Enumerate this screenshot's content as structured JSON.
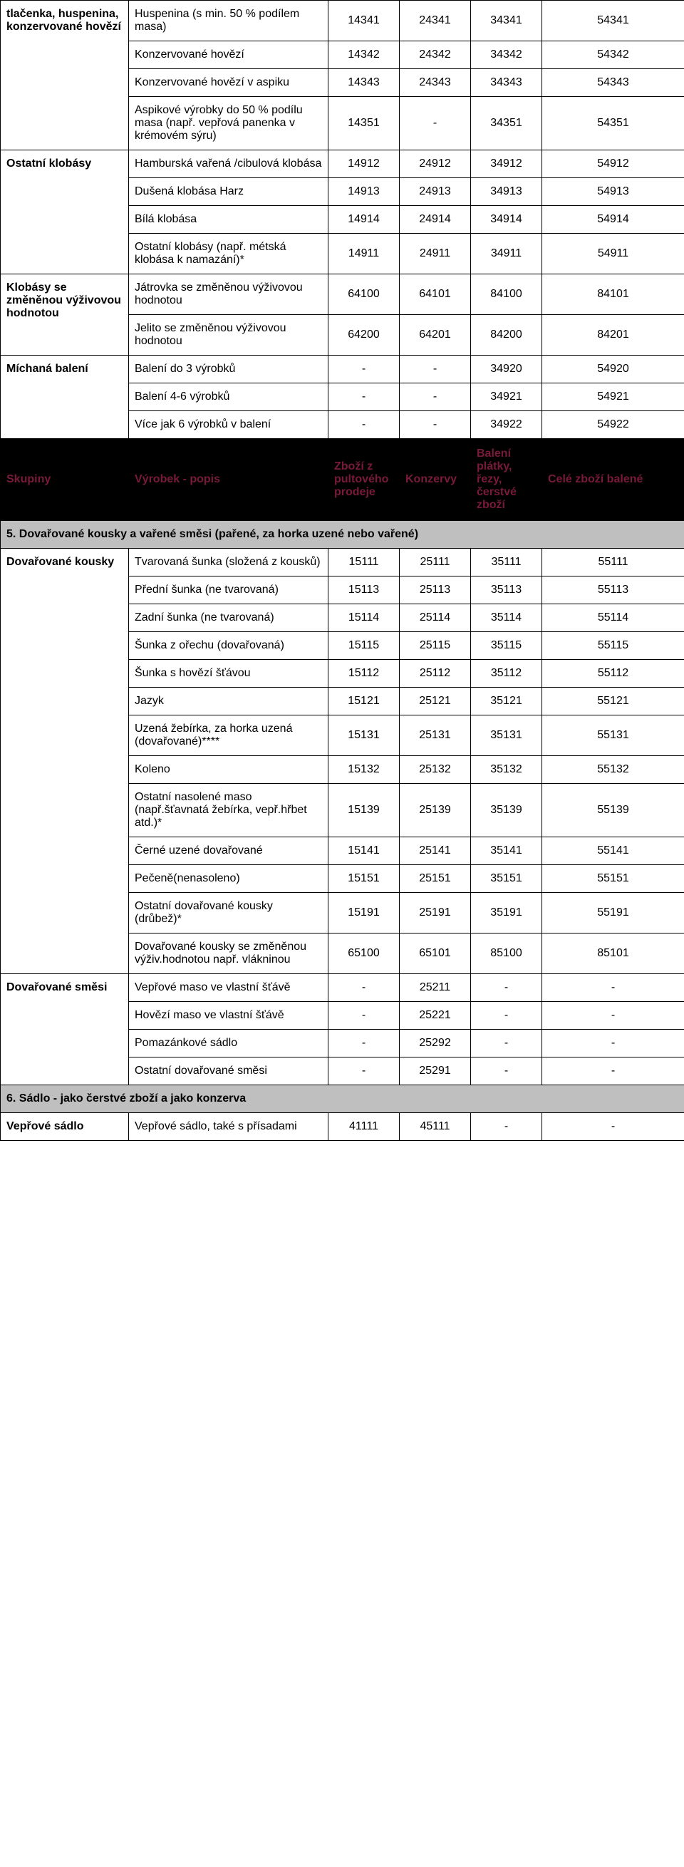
{
  "groups": [
    {
      "category": "tlačenka, huspenina, konzervované hovězí",
      "rows": [
        {
          "desc": "Huspenina (s min. 50 % podílem masa)",
          "c": [
            "14341",
            "24341",
            "34341",
            "54341"
          ]
        },
        {
          "desc": "Konzervované hovězí",
          "c": [
            "14342",
            "24342",
            "34342",
            "54342"
          ]
        },
        {
          "desc": "Konzervované hovězí v aspiku",
          "c": [
            "14343",
            "24343",
            "34343",
            "54343"
          ]
        },
        {
          "desc": "Aspikové výrobky do 50 % podílu masa (např. vepřová panenka v krémovém sýru)",
          "c": [
            "14351",
            "-",
            "34351",
            "54351"
          ]
        }
      ]
    },
    {
      "category": "Ostatní klobásy",
      "rows": [
        {
          "desc": "Hamburská vařená /cibulová klobása",
          "c": [
            "14912",
            "24912",
            "34912",
            "54912"
          ]
        },
        {
          "desc": "Dušená klobása Harz",
          "c": [
            "14913",
            "24913",
            "34913",
            "54913"
          ]
        },
        {
          "desc": "Bílá klobása",
          "c": [
            "14914",
            "24914",
            "34914",
            "54914"
          ]
        },
        {
          "desc": "Ostatní klobásy (např. métská klobása k namazání)*",
          "c": [
            "14911",
            "24911",
            "34911",
            "54911"
          ]
        }
      ]
    },
    {
      "category": "Klobásy se změněnou výživovou hodnotou",
      "rows": [
        {
          "desc": "Játrovka se změněnou výživovou hodnotou",
          "c": [
            "64100",
            "64101",
            "84100",
            "84101"
          ]
        },
        {
          "desc": "Jelito se změněnou výživovou hodnotou",
          "c": [
            "64200",
            "64201",
            "84200",
            "84201"
          ]
        }
      ]
    },
    {
      "category": "Míchaná balení",
      "rows": [
        {
          "desc": "Balení do 3 výrobků",
          "c": [
            "-",
            "-",
            "34920",
            "54920"
          ]
        },
        {
          "desc": "Balení 4-6 výrobků",
          "c": [
            "-",
            "-",
            "34921",
            "54921"
          ]
        },
        {
          "desc": "Více jak 6 výrobků v balení",
          "c": [
            "-",
            "-",
            "34922",
            "54922"
          ]
        }
      ]
    }
  ],
  "darkHeader": {
    "col1": "Skupiny",
    "col2": "Výrobek - popis",
    "col3": "Zboží z pultového prodeje",
    "col4": "Konzervy",
    "col5": "Balení plátky, řezy, čerstvé zboží",
    "col6": "Celé zboží balené"
  },
  "section5": {
    "title": "5. Dovařované kousky a vařené směsi (pařené, za horka uzené nebo vařené)",
    "groups": [
      {
        "category": "Dovařované kousky",
        "rows": [
          {
            "desc": "Tvarovaná šunka (složená z kousků)",
            "c": [
              "15111",
              "25111",
              "35111",
              "55111"
            ]
          },
          {
            "desc": "Přední šunka (ne tvarovaná)",
            "c": [
              "15113",
              "25113",
              "35113",
              "55113"
            ]
          },
          {
            "desc": "Zadní šunka (ne tvarovaná)",
            "c": [
              "15114",
              "25114",
              "35114",
              "55114"
            ]
          },
          {
            "desc": "Šunka z ořechu (dovařovaná)",
            "c": [
              "15115",
              "25115",
              "35115",
              "55115"
            ]
          },
          {
            "desc": "Šunka s hovězí šťávou",
            "c": [
              "15112",
              "25112",
              "35112",
              "55112"
            ]
          },
          {
            "desc": "Jazyk",
            "c": [
              "15121",
              "25121",
              "35121",
              "55121"
            ]
          },
          {
            "desc": "Uzená žebírka, za horka uzená (dovařované)****",
            "c": [
              "15131",
              "25131",
              "35131",
              "55131"
            ]
          },
          {
            "desc": "Koleno",
            "c": [
              "15132",
              "25132",
              "35132",
              "55132"
            ]
          },
          {
            "desc": "Ostatní nasolené maso (např.šťavnatá žebírka, vepř.hřbet atd.)*",
            "c": [
              "15139",
              "25139",
              "35139",
              "55139"
            ]
          },
          {
            "desc": "Černé uzené dovařované",
            "c": [
              "15141",
              "25141",
              "35141",
              "55141"
            ]
          },
          {
            "desc": "Pečeně(nenasoleno)",
            "c": [
              "15151",
              "25151",
              "35151",
              "55151"
            ]
          },
          {
            "desc": "Ostatní dovařované kousky (drůbež)*",
            "c": [
              "15191",
              "25191",
              "35191",
              "55191"
            ]
          },
          {
            "desc": "Dovařované kousky se změněnou výživ.hodnotou např. vlákninou",
            "c": [
              "65100",
              "65101",
              "85100",
              "85101"
            ]
          }
        ]
      },
      {
        "category": "Dovařované směsi",
        "rows": [
          {
            "desc": "Vepřové maso ve vlastní šťávě",
            "c": [
              "-",
              "25211",
              "-",
              "-"
            ]
          },
          {
            "desc": "Hovězí maso ve vlastní šťávě",
            "c": [
              "-",
              "25221",
              "-",
              "-"
            ]
          },
          {
            "desc": "Pomazánkové sádlo",
            "c": [
              "-",
              "25292",
              "-",
              "-"
            ]
          },
          {
            "desc": "Ostatní dovařované směsi",
            "c": [
              "-",
              "25291",
              "-",
              "-"
            ]
          }
        ]
      }
    ]
  },
  "section6": {
    "title": "6. Sádlo - jako čerstvé zboží a jako konzerva",
    "groups": [
      {
        "category": "Vepřové sádlo",
        "rows": [
          {
            "desc": "Vepřové sádlo, také s přísadami",
            "c": [
              "41111",
              "45111",
              "-",
              "-"
            ]
          }
        ]
      }
    ]
  }
}
